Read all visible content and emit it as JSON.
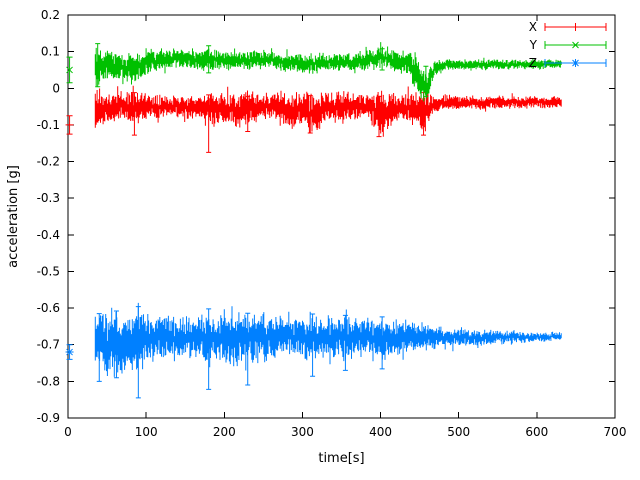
{
  "figure": {
    "background": "#ffffff"
  },
  "chart_data": {
    "type": "scatter",
    "style": "points-with-errorbars",
    "title": "",
    "xlabel": "time[s]",
    "ylabel": "acceleration [g]",
    "xlim": [
      0,
      700
    ],
    "ylim": [
      -0.9,
      0.2
    ],
    "xticks": [
      0,
      100,
      200,
      300,
      400,
      500,
      600,
      700
    ],
    "yticks": [
      0.2,
      0.1,
      0,
      -0.1,
      -0.2,
      -0.3,
      -0.4,
      -0.5,
      -0.6,
      -0.7,
      -0.8,
      -0.9
    ],
    "ytick_labels": [
      "0.2",
      "0.1",
      "0",
      "-0.1",
      "-0.2",
      "-0.3",
      "-0.4",
      "-0.5",
      "-0.6",
      "-0.7",
      "-0.8",
      "-0.9"
    ],
    "grid": false,
    "legend": {
      "position": "top-right",
      "entries": [
        "X",
        "Y",
        "Z"
      ]
    },
    "series": [
      {
        "name": "X",
        "color": "#ff0000",
        "marker": "plus",
        "seed": 11,
        "start_point": {
          "t": 2,
          "y": -0.1,
          "err": 0.025
        },
        "envelope": [
          [
            35,
            -0.06,
            0.06
          ],
          [
            42,
            -0.05,
            0.04
          ],
          [
            55,
            -0.05,
            0.032
          ],
          [
            70,
            -0.048,
            0.03
          ],
          [
            83,
            -0.06,
            0.05
          ],
          [
            92,
            -0.05,
            0.032
          ],
          [
            110,
            -0.05,
            0.026
          ],
          [
            135,
            -0.048,
            0.024
          ],
          [
            160,
            -0.05,
            0.026
          ],
          [
            175,
            -0.055,
            0.034
          ],
          [
            183,
            -0.06,
            0.042
          ],
          [
            195,
            -0.05,
            0.03
          ],
          [
            212,
            -0.058,
            0.042
          ],
          [
            228,
            -0.06,
            0.042
          ],
          [
            243,
            -0.05,
            0.032
          ],
          [
            262,
            -0.048,
            0.028
          ],
          [
            282,
            -0.062,
            0.042
          ],
          [
            295,
            -0.055,
            0.034
          ],
          [
            308,
            -0.068,
            0.044
          ],
          [
            322,
            -0.068,
            0.044
          ],
          [
            333,
            -0.05,
            0.03
          ],
          [
            352,
            -0.058,
            0.038
          ],
          [
            368,
            -0.048,
            0.028
          ],
          [
            385,
            -0.05,
            0.03
          ],
          [
            398,
            -0.072,
            0.05
          ],
          [
            412,
            -0.065,
            0.042
          ],
          [
            428,
            -0.05,
            0.03
          ],
          [
            443,
            -0.055,
            0.035
          ],
          [
            455,
            -0.068,
            0.048
          ],
          [
            465,
            -0.05,
            0.03
          ],
          [
            475,
            -0.04,
            0.018
          ],
          [
            520,
            -0.04,
            0.015
          ],
          [
            575,
            -0.038,
            0.013
          ],
          [
            632,
            -0.038,
            0.013
          ]
        ],
        "spikes": [
          [
            85,
            -0.128,
            -0.012
          ],
          [
            180,
            -0.175,
            -0.018
          ],
          [
            230,
            -0.118,
            -0.022
          ],
          [
            310,
            -0.122,
            -0.02
          ],
          [
            398,
            -0.132,
            -0.022
          ],
          [
            455,
            -0.128,
            -0.012
          ]
        ]
      },
      {
        "name": "Y",
        "color": "#00c000",
        "marker": "cross",
        "seed": 22,
        "start_point": {
          "t": 2,
          "y": 0.05,
          "err": 0.035
        },
        "envelope": [
          [
            35,
            0.06,
            0.055
          ],
          [
            45,
            0.068,
            0.04
          ],
          [
            55,
            0.062,
            0.036
          ],
          [
            70,
            0.055,
            0.032
          ],
          [
            83,
            0.05,
            0.034
          ],
          [
            93,
            0.068,
            0.032
          ],
          [
            110,
            0.074,
            0.026
          ],
          [
            128,
            0.08,
            0.022
          ],
          [
            145,
            0.085,
            0.02
          ],
          [
            162,
            0.076,
            0.02
          ],
          [
            176,
            0.076,
            0.026
          ],
          [
            186,
            0.08,
            0.028
          ],
          [
            200,
            0.075,
            0.02
          ],
          [
            225,
            0.075,
            0.02
          ],
          [
            248,
            0.078,
            0.02
          ],
          [
            258,
            0.082,
            0.02
          ],
          [
            275,
            0.07,
            0.02
          ],
          [
            295,
            0.07,
            0.02
          ],
          [
            310,
            0.064,
            0.024
          ],
          [
            330,
            0.07,
            0.02
          ],
          [
            355,
            0.07,
            0.02
          ],
          [
            375,
            0.072,
            0.02
          ],
          [
            392,
            0.08,
            0.024
          ],
          [
            402,
            0.086,
            0.022
          ],
          [
            418,
            0.072,
            0.024
          ],
          [
            432,
            0.07,
            0.024
          ],
          [
            444,
            0.05,
            0.04
          ],
          [
            453,
            0.022,
            0.045
          ],
          [
            459,
            0.0,
            0.03
          ],
          [
            464,
            0.028,
            0.028
          ],
          [
            470,
            0.058,
            0.02
          ],
          [
            482,
            0.064,
            0.012
          ],
          [
            560,
            0.065,
            0.011
          ],
          [
            632,
            0.066,
            0.011
          ]
        ],
        "spikes": [
          [
            38,
            0.004,
            0.122
          ],
          [
            180,
            0.042,
            0.116
          ],
          [
            402,
            0.05,
            0.108
          ],
          [
            458,
            -0.022,
            0.06
          ]
        ]
      },
      {
        "name": "Z",
        "color": "#0080ff",
        "marker": "asterisk",
        "seed": 33,
        "start_point": {
          "t": 2,
          "y": -0.72,
          "err": 0.02
        },
        "envelope": [
          [
            35,
            -0.7,
            0.055
          ],
          [
            44,
            -0.69,
            0.07
          ],
          [
            54,
            -0.7,
            0.075
          ],
          [
            64,
            -0.69,
            0.07
          ],
          [
            76,
            -0.69,
            0.062
          ],
          [
            88,
            -0.7,
            0.08
          ],
          [
            98,
            -0.685,
            0.055
          ],
          [
            112,
            -0.68,
            0.046
          ],
          [
            128,
            -0.685,
            0.05
          ],
          [
            144,
            -0.68,
            0.042
          ],
          [
            160,
            -0.68,
            0.046
          ],
          [
            174,
            -0.685,
            0.06
          ],
          [
            188,
            -0.68,
            0.05
          ],
          [
            204,
            -0.685,
            0.055
          ],
          [
            220,
            -0.685,
            0.06
          ],
          [
            236,
            -0.68,
            0.055
          ],
          [
            252,
            -0.685,
            0.05
          ],
          [
            266,
            -0.68,
            0.046
          ],
          [
            282,
            -0.68,
            0.04
          ],
          [
            296,
            -0.68,
            0.046
          ],
          [
            312,
            -0.685,
            0.056
          ],
          [
            326,
            -0.68,
            0.042
          ],
          [
            342,
            -0.68,
            0.046
          ],
          [
            356,
            -0.685,
            0.05
          ],
          [
            372,
            -0.68,
            0.04
          ],
          [
            388,
            -0.68,
            0.04
          ],
          [
            402,
            -0.685,
            0.046
          ],
          [
            418,
            -0.68,
            0.04
          ],
          [
            432,
            -0.68,
            0.036
          ],
          [
            452,
            -0.68,
            0.03
          ],
          [
            472,
            -0.68,
            0.026
          ],
          [
            502,
            -0.68,
            0.02
          ],
          [
            542,
            -0.68,
            0.016
          ],
          [
            582,
            -0.679,
            0.012
          ],
          [
            632,
            -0.678,
            0.01
          ]
        ],
        "spikes": [
          [
            40,
            -0.8,
            -0.615
          ],
          [
            62,
            -0.79,
            -0.608
          ],
          [
            90,
            -0.845,
            -0.596
          ],
          [
            180,
            -0.822,
            -0.602
          ],
          [
            230,
            -0.81,
            -0.614
          ],
          [
            313,
            -0.786,
            -0.616
          ],
          [
            355,
            -0.77,
            -0.62
          ],
          [
            402,
            -0.766,
            -0.624
          ]
        ]
      }
    ]
  }
}
